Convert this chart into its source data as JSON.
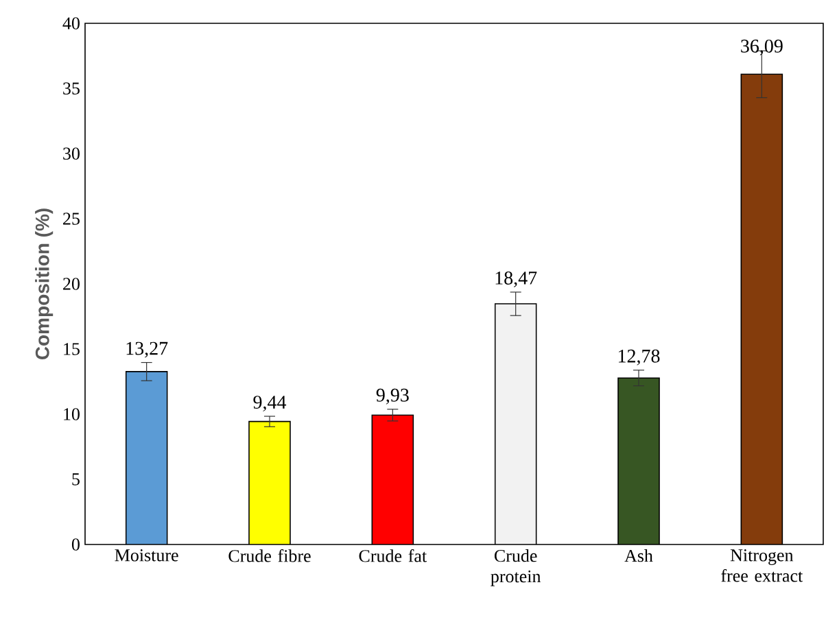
{
  "chart_data": {
    "type": "bar",
    "ylabel": "Composition (%)",
    "categories": [
      "Moisture",
      "Crude fibre",
      "Crude fat",
      "Crude protein",
      "Ash",
      "Nitrogen free extract"
    ],
    "values": [
      13.27,
      9.44,
      9.93,
      18.47,
      12.78,
      36.09
    ],
    "value_labels": [
      "13,27",
      "9,44",
      "9,93",
      "18,47",
      "12,78",
      "36,09"
    ],
    "errors": [
      0.7,
      0.4,
      0.45,
      0.9,
      0.6,
      1.8
    ],
    "colors": [
      "#5b9bd5",
      "#ffff00",
      "#ff0000",
      "#f2f2f2",
      "#375623",
      "#843c0c"
    ],
    "ylim": [
      0,
      40
    ],
    "yticks": [
      0,
      5,
      10,
      15,
      20,
      25,
      30,
      35,
      40
    ]
  }
}
